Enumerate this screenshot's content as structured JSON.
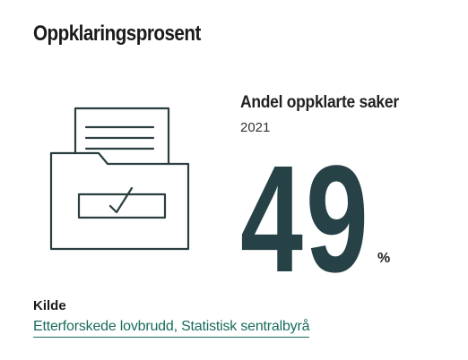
{
  "header": {
    "title": "Oppklaringsprosent"
  },
  "illustration": {
    "icon": "folder-document-checkbox-icon",
    "stroke_color": "#2b3e40"
  },
  "statistic": {
    "label": "Andel oppklarte saker",
    "year": "2021",
    "value": "49",
    "unit": "%",
    "value_color": "#274247"
  },
  "source": {
    "heading": "Kilde",
    "link_text": "Etterforskede lovbrudd, Statistisk sentralbyrå",
    "link_color": "#1a6c5d"
  }
}
